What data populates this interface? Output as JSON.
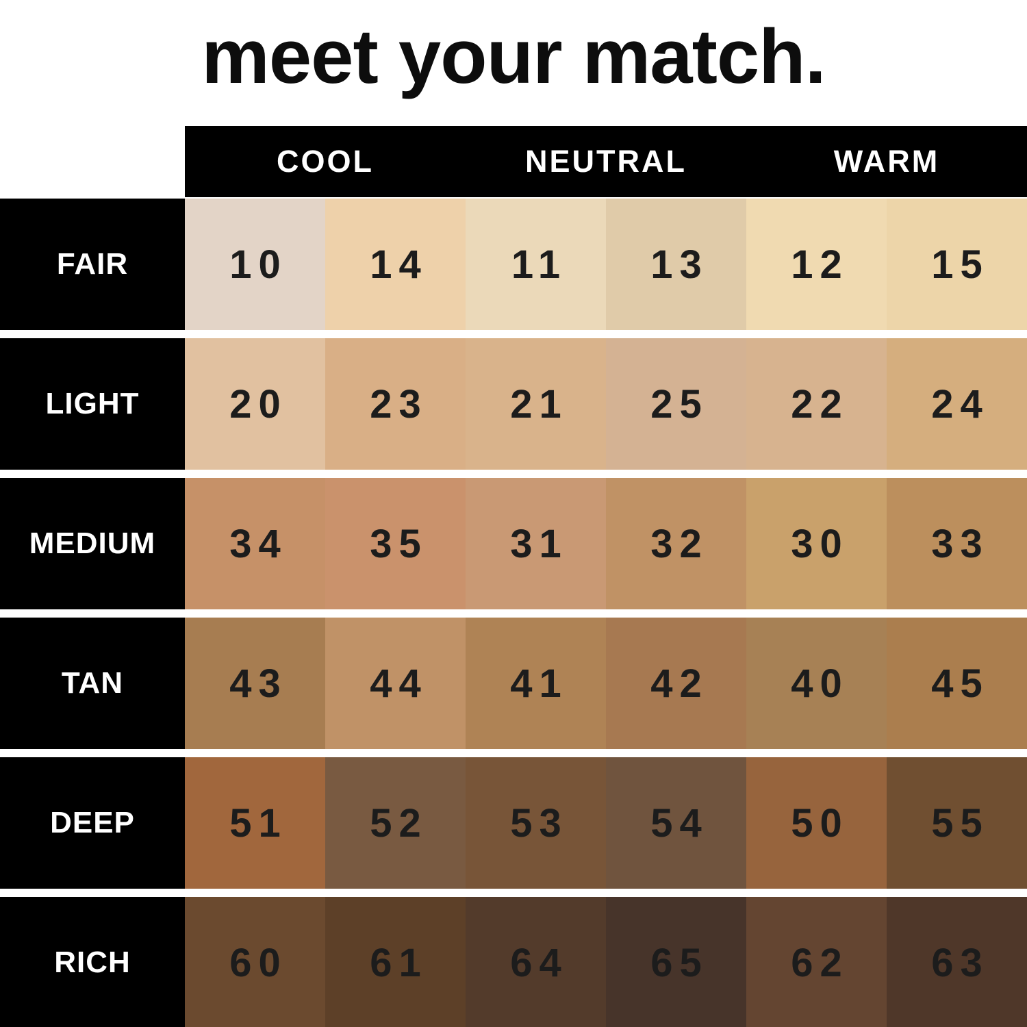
{
  "title": "meet your match.",
  "header_columns": [
    "COOL",
    "NEUTRAL",
    "WARM"
  ],
  "colors": {
    "background": "#ffffff",
    "bar_black": "#000000",
    "label_text": "#ffffff",
    "number_text": "#1c1c1c"
  },
  "chart_data": {
    "type": "table",
    "title": "meet your match.",
    "column_group_labels": [
      "COOL",
      "NEUTRAL",
      "WARM"
    ],
    "columns_per_group": 2,
    "row_labels": [
      "FAIR",
      "LIGHT",
      "MEDIUM",
      "TAN",
      "DEEP",
      "RICH"
    ],
    "shade_numbers": [
      [
        "10",
        "14",
        "11",
        "13",
        "12",
        "15"
      ],
      [
        "20",
        "23",
        "21",
        "25",
        "22",
        "24"
      ],
      [
        "34",
        "35",
        "31",
        "32",
        "30",
        "33"
      ],
      [
        "43",
        "44",
        "41",
        "42",
        "40",
        "45"
      ],
      [
        "51",
        "52",
        "53",
        "54",
        "50",
        "55"
      ],
      [
        "60",
        "61",
        "64",
        "65",
        "62",
        "63"
      ]
    ],
    "shade_colors": [
      [
        "#e3d4c7",
        "#eed1aa",
        "#ebd9b9",
        "#e0cba9",
        "#f0dab1",
        "#edd5a9"
      ],
      [
        "#e1c1a0",
        "#d9af86",
        "#d9b38b",
        "#d4b293",
        "#d7b38f",
        "#d5ae7e"
      ],
      [
        "#c69168",
        "#ca926c",
        "#c99974",
        "#c09265",
        "#c9a16b",
        "#bc8f5d"
      ],
      [
        "#a77d51",
        "#c09267",
        "#af8355",
        "#a77951",
        "#a78155",
        "#ab7e4e"
      ],
      [
        "#a1673d",
        "#795a41",
        "#785538",
        "#70543e",
        "#97643d",
        "#704f31"
      ],
      [
        "#6b4a2f",
        "#5d4028",
        "#533b2b",
        "#47342a",
        "#644531",
        "#4f3729"
      ]
    ]
  }
}
